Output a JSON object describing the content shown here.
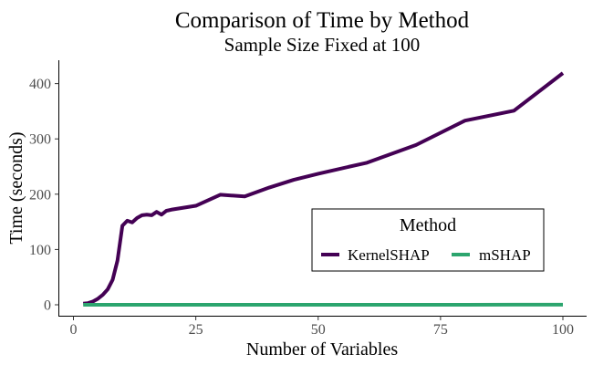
{
  "chart_data": {
    "type": "line",
    "title": "Comparison of Time by Method",
    "subtitle": "Sample Size Fixed at 100",
    "xlabel": "Number of Variables",
    "ylabel": "Time (seconds)",
    "xlim": [
      0,
      100
    ],
    "ylim": [
      0,
      420
    ],
    "xticks": [
      0,
      25,
      50,
      75,
      100
    ],
    "yticks": [
      0,
      100,
      200,
      300,
      400
    ],
    "grid": false,
    "legend": {
      "title": "Method",
      "position": "bottom-right",
      "entries": [
        "KernelSHAP",
        "mSHAP"
      ]
    },
    "series": [
      {
        "name": "KernelSHAP",
        "color": "#440154",
        "x": [
          2,
          3,
          4,
          5,
          6,
          7,
          8,
          9,
          10,
          11,
          12,
          13,
          14,
          15,
          16,
          17,
          18,
          19,
          20,
          25,
          30,
          35,
          40,
          45,
          50,
          60,
          70,
          80,
          90,
          100
        ],
        "y": [
          2,
          3,
          6,
          11,
          18,
          28,
          45,
          80,
          143,
          152,
          149,
          157,
          162,
          163,
          162,
          168,
          163,
          170,
          172,
          179,
          199,
          196,
          212,
          226,
          237,
          257,
          289,
          333,
          351,
          419
        ]
      },
      {
        "name": "mSHAP",
        "color": "#2ca56e",
        "x": [
          2,
          10,
          20,
          30,
          40,
          50,
          60,
          70,
          80,
          90,
          100
        ],
        "y": [
          0,
          0,
          0,
          0,
          0,
          0,
          0,
          0.1,
          0.1,
          0.2,
          0.2
        ]
      }
    ]
  }
}
